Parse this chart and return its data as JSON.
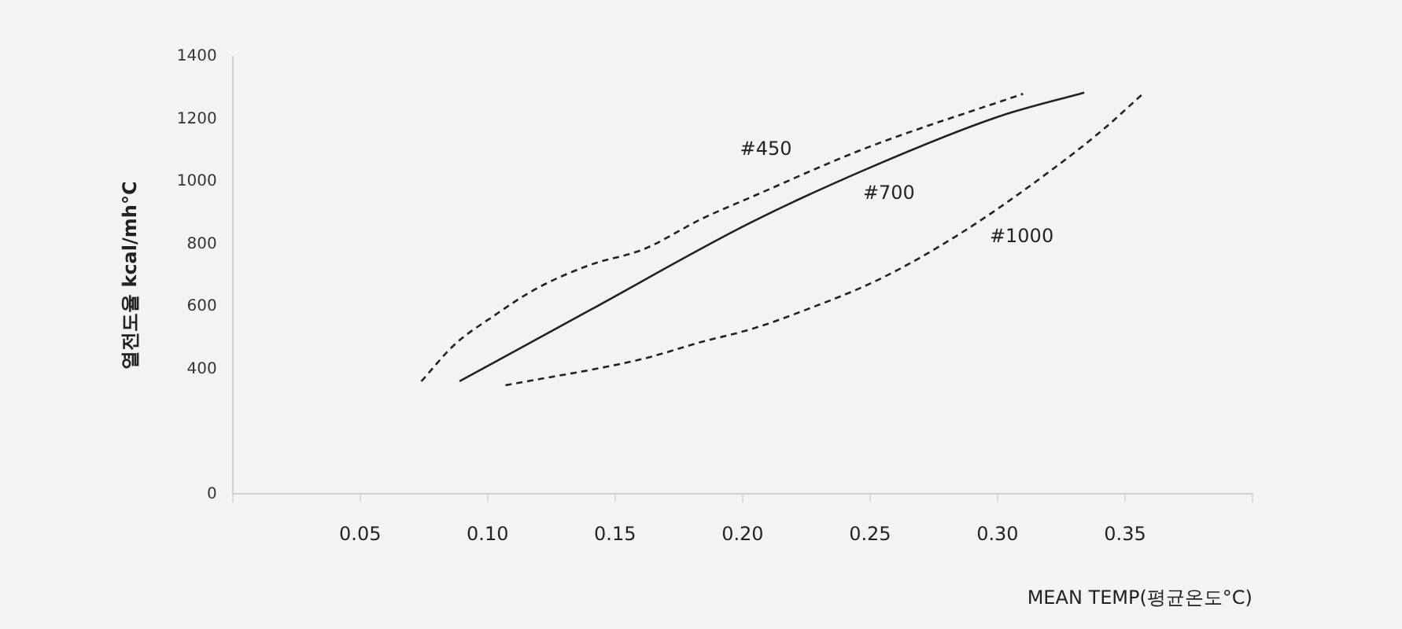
{
  "chart_data": {
    "type": "line",
    "xlabel": "MEAN TEMP(평균온도°C)",
    "ylabel": "열전도율 kcal/mh°C",
    "xlim": [
      0,
      0.4
    ],
    "ylim": [
      0,
      1400
    ],
    "xticks": [
      {
        "value": 0,
        "label": null
      },
      {
        "value": 0.05,
        "label": "0.05"
      },
      {
        "value": 0.1,
        "label": "0.10"
      },
      {
        "value": 0.15,
        "label": "0.15"
      },
      {
        "value": 0.2,
        "label": "0.20"
      },
      {
        "value": 0.25,
        "label": "0.25"
      },
      {
        "value": 0.3,
        "label": "0.30"
      },
      {
        "value": 0.35,
        "label": "0.35"
      },
      {
        "value": 0.4,
        "label": null
      }
    ],
    "yticks": [
      0,
      400,
      600,
      800,
      1000,
      1200,
      1400
    ],
    "grid": false,
    "legend": false,
    "marker": "none",
    "series": [
      {
        "name": "#450",
        "color": "#222222",
        "line_style": "dashed",
        "x": [
          0.074,
          0.087,
          0.102,
          0.119,
          0.14,
          0.161,
          0.184,
          0.203,
          0.248,
          0.31
        ],
        "values": [
          361,
          478,
          568,
          657,
          733,
          783,
          881,
          949,
          1106,
          1281
        ]
      },
      {
        "name": "#700",
        "color": "#222222",
        "line_style": "solid",
        "x": [
          0.089,
          0.14,
          0.203,
          0.25,
          0.3,
          0.334
        ],
        "values": [
          361,
          588,
          868,
          1045,
          1207,
          1285
        ]
      },
      {
        "name": "#1000",
        "color": "#222222",
        "line_style": "dashed",
        "x": [
          0.107,
          0.161,
          0.184,
          0.203,
          0.222,
          0.254,
          0.286,
          0.32,
          0.341,
          0.357
        ],
        "values": [
          348,
          433,
          487,
          527,
          581,
          689,
          837,
          1030,
          1164,
          1281
        ]
      }
    ]
  }
}
